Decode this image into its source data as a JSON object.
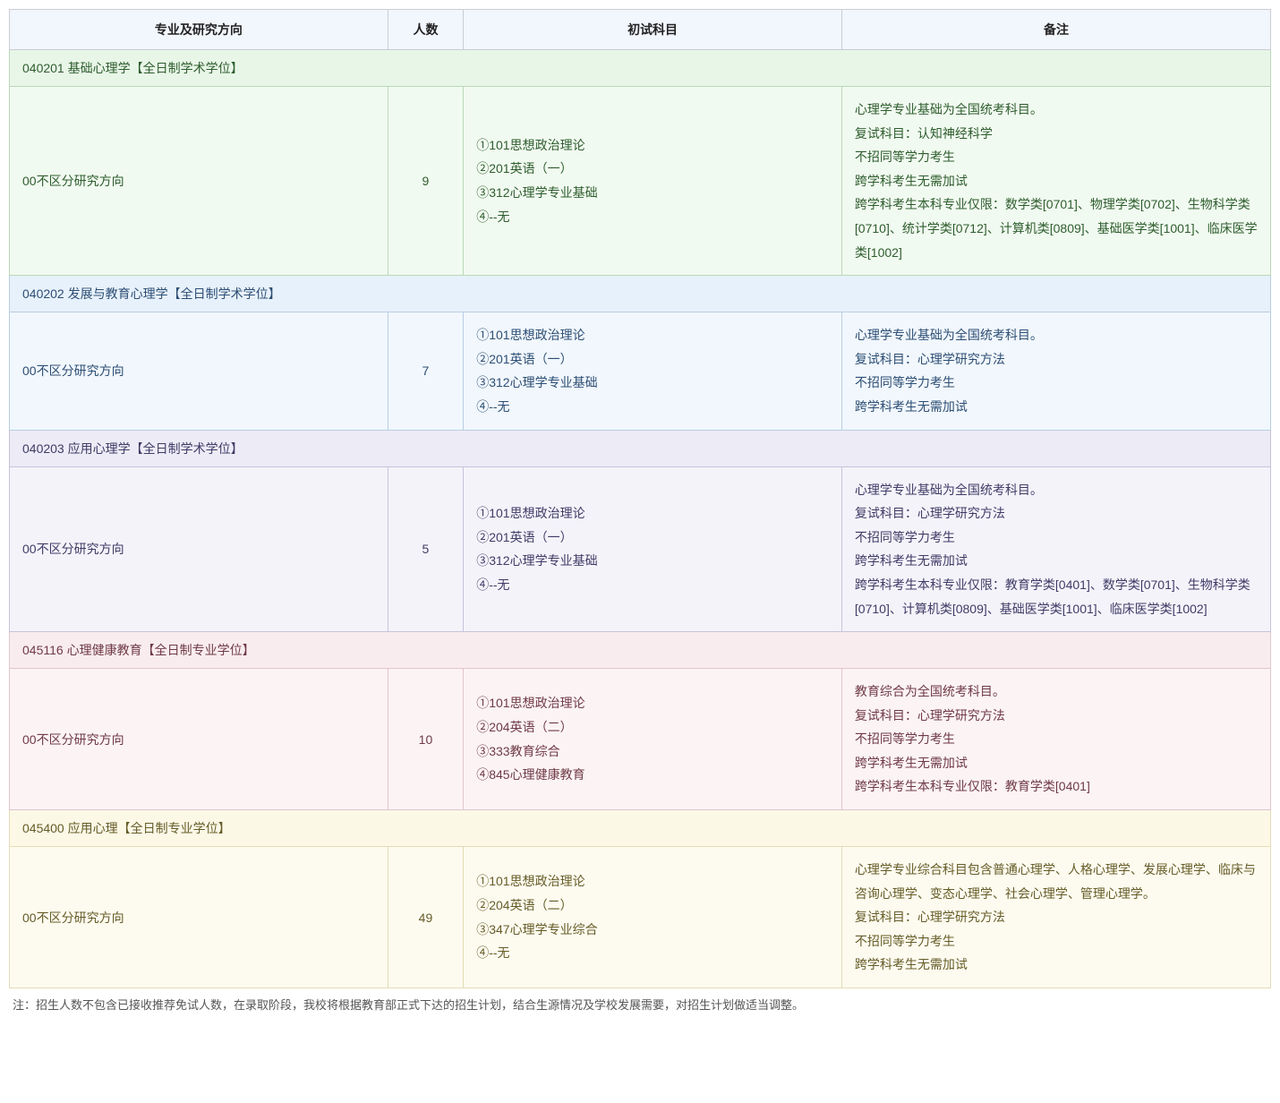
{
  "header": {
    "bg": "#f2f6fd",
    "border": "#c9cdd6",
    "text": "#222",
    "cols": [
      {
        "label": "专业及研究方向"
      },
      {
        "label": "人数"
      },
      {
        "label": "初试科目"
      },
      {
        "label": "备注"
      }
    ]
  },
  "sections": [
    {
      "title": "040201 基础心理学【全日制学术学位】",
      "header_bg": "#e8f6e7",
      "row_bg": "#f1faf0",
      "border": "#b9d9b8",
      "text": "#2e5d2e",
      "direction": "00不区分研究方向",
      "count": "9",
      "subjects": [
        "①101思想政治理论",
        "②201英语（一）",
        "③312心理学专业基础",
        "④--无"
      ],
      "notes": [
        "心理学专业基础为全国统考科目。",
        "复试科目：认知神经科学",
        "不招同等学力考生",
        "跨学科考生无需加试",
        "跨学科考生本科专业仅限：数学类[0701]、物理学类[0702]、生物科学类[0710]、统计学类[0712]、计算机类[0809]、基础医学类[1001]、临床医学类[1002]"
      ]
    },
    {
      "title": "040202 发展与教育心理学【全日制学术学位】",
      "header_bg": "#e7f1fb",
      "row_bg": "#f1f7fd",
      "border": "#b8cde3",
      "text": "#2d4e74",
      "direction": "00不区分研究方向",
      "count": "7",
      "subjects": [
        "①101思想政治理论",
        "②201英语（一）",
        "③312心理学专业基础",
        "④--无"
      ],
      "notes": [
        "心理学专业基础为全国统考科目。",
        "复试科目：心理学研究方法",
        "不招同等学力考生",
        "跨学科考生无需加试"
      ]
    },
    {
      "title": "040203 应用心理学【全日制学术学位】",
      "header_bg": "#ecebf6",
      "row_bg": "#f4f3fa",
      "border": "#c6c3db",
      "text": "#3f3b66",
      "direction": "00不区分研究方向",
      "count": "5",
      "subjects": [
        "①101思想政治理论",
        "②201英语（一）",
        "③312心理学专业基础",
        "④--无"
      ],
      "notes": [
        "心理学专业基础为全国统考科目。",
        "复试科目：心理学研究方法",
        "不招同等学力考生",
        "跨学科考生无需加试",
        "跨学科考生本科专业仅限：教育学类[0401]、数学类[0701]、生物科学类[0710]、计算机类[0809]、基础医学类[1001]、临床医学类[1002]"
      ]
    },
    {
      "title": "045116 心理健康教育【全日制专业学位】",
      "header_bg": "#f9ecef",
      "row_bg": "#fcf3f5",
      "border": "#e3c5cc",
      "text": "#6f3a47",
      "direction": "00不区分研究方向",
      "count": "10",
      "subjects": [
        "①101思想政治理论",
        "②204英语（二）",
        "③333教育综合",
        "④845心理健康教育"
      ],
      "notes": [
        "教育综合为全国统考科目。",
        "复试科目：心理学研究方法",
        "不招同等学力考生",
        "跨学科考生无需加试",
        "跨学科考生本科专业仅限：教育学类[0401]"
      ]
    },
    {
      "title": "045400 应用心理【全日制专业学位】",
      "header_bg": "#fbf8e6",
      "row_bg": "#fdfbef",
      "border": "#e2dcb7",
      "text": "#665c28",
      "direction": "00不区分研究方向",
      "count": "49",
      "subjects": [
        "①101思想政治理论",
        "②204英语（二）",
        "③347心理学专业综合",
        "④--无"
      ],
      "notes": [
        "心理学专业综合科目包含普通心理学、人格心理学、发展心理学、临床与咨询心理学、变态心理学、社会心理学、管理心理学。",
        "复试科目：心理学研究方法",
        "不招同等学力考生",
        "跨学科考生无需加试"
      ]
    }
  ],
  "footnote": "注：招生人数不包含已接收推荐免试人数，在录取阶段，我校将根据教育部正式下达的招生计划，结合生源情况及学校发展需要，对招生计划做适当调整。"
}
